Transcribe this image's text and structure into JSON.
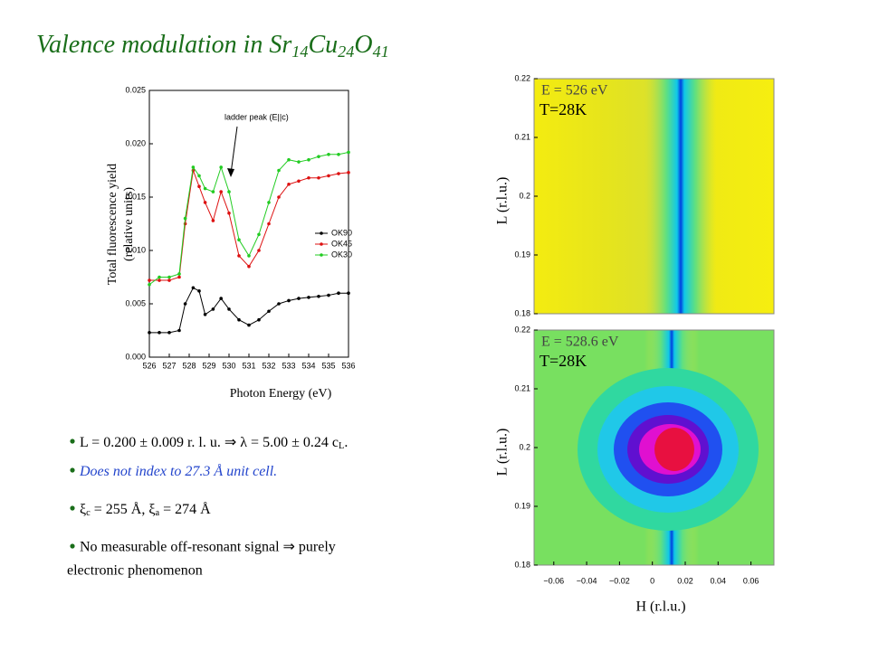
{
  "title_parts": [
    "Valence modulation in Sr",
    "14",
    "Cu",
    "24",
    "O",
    "41"
  ],
  "chart_data": [
    {
      "type": "line",
      "ylabel": [
        "Total fluorescence yield",
        "(relative units)"
      ],
      "xlabel": "Photon Energy (eV)",
      "annotation": "ladder peak (E||c)",
      "x": [
        526,
        526.5,
        527,
        527.5,
        527.8,
        528.2,
        528.5,
        528.8,
        529.2,
        529.6,
        530,
        530.5,
        531,
        531.5,
        532,
        532.5,
        533,
        533.5,
        534,
        534.5,
        535,
        535.5,
        536
      ],
      "series": [
        {
          "name": "OK90",
          "color": "#000000",
          "values": [
            0.0023,
            0.0023,
            0.0023,
            0.0025,
            0.005,
            0.0065,
            0.0062,
            0.004,
            0.0045,
            0.0055,
            0.0045,
            0.0035,
            0.003,
            0.0035,
            0.0043,
            0.005,
            0.0053,
            0.0055,
            0.0056,
            0.0057,
            0.0058,
            0.006,
            0.006
          ]
        },
        {
          "name": "OK45",
          "color": "#dd1111",
          "values": [
            0.0072,
            0.0072,
            0.0072,
            0.0075,
            0.0125,
            0.0175,
            0.016,
            0.0145,
            0.0128,
            0.0155,
            0.0135,
            0.0095,
            0.0085,
            0.01,
            0.0125,
            0.015,
            0.0162,
            0.0165,
            0.0168,
            0.0168,
            0.017,
            0.0172,
            0.0173
          ]
        },
        {
          "name": "OK30",
          "color": "#22cc22",
          "values": [
            0.0068,
            0.0075,
            0.0075,
            0.0078,
            0.013,
            0.0178,
            0.017,
            0.0158,
            0.0155,
            0.0178,
            0.0155,
            0.011,
            0.0095,
            0.0115,
            0.0145,
            0.0175,
            0.0185,
            0.0183,
            0.0185,
            0.0188,
            0.019,
            0.019,
            0.0192
          ]
        }
      ],
      "xlim": [
        526,
        536
      ],
      "xticks": [
        526,
        527,
        528,
        529,
        530,
        531,
        532,
        533,
        534,
        535,
        536
      ],
      "ylim": [
        0,
        0.025
      ],
      "yticks": [
        {
          "value": 0,
          "label": "0.000"
        },
        {
          "value": 0.005,
          "label": "0.005"
        },
        {
          "value": 0.01,
          "label": "0.010"
        },
        {
          "value": 0.015,
          "label": "0.015"
        },
        {
          "value": 0.02,
          "label": "0.020"
        },
        {
          "value": 0.025,
          "label": "0.025"
        }
      ]
    },
    {
      "type": "contour",
      "ylabel": "L (r.l.u.)",
      "annotations": [
        "E = 526 eV",
        "T=28K"
      ],
      "ylim": [
        0.18,
        0.22
      ],
      "yticks": [
        {
          "value": 0.18,
          "label": "0.18"
        },
        {
          "value": 0.19,
          "label": "0.19"
        },
        {
          "value": 0.2,
          "label": "0.2"
        },
        {
          "value": 0.21,
          "label": "0.21"
        },
        {
          "value": 0.22,
          "label": "0.22"
        }
      ]
    },
    {
      "type": "contour",
      "ylabel": "L (r.l.u.)",
      "xlabel": "H (r.l.u.)",
      "annotations": [
        "E = 528.6 eV",
        "T=28K"
      ],
      "ylim": [
        0.18,
        0.22
      ],
      "yticks": [
        {
          "value": 0.18,
          "label": "0.18"
        },
        {
          "value": 0.19,
          "label": "0.19"
        },
        {
          "value": 0.2,
          "label": "0.2"
        },
        {
          "value": 0.21,
          "label": "0.21"
        },
        {
          "value": 0.22,
          "label": "0.22"
        }
      ],
      "xlim": [
        -0.072,
        0.074
      ],
      "xticks": [
        {
          "value": -0.06,
          "label": "−0.06"
        },
        {
          "value": -0.04,
          "label": "−0.04"
        },
        {
          "value": -0.02,
          "label": "−0.02"
        },
        0,
        {
          "value": 0.02,
          "label": "0.02"
        },
        {
          "value": 0.04,
          "label": "0.04"
        },
        {
          "value": 0.06,
          "label": "0.06"
        }
      ]
    }
  ],
  "bullets": [
    [
      "L = 0.200 ± 0.009 r. l. u.  ⇒  λ = 5.00 ± 0.24 c",
      "L",
      "."
    ],
    [
      "Does not index to 27.3 Å unit cell."
    ],
    [
      "ξ",
      "c",
      " = 255 Å, ξ",
      "a",
      " = 274 Å"
    ],
    [
      "No measurable off-resonant signal  ⇒  purely",
      "electronic phenomenon"
    ]
  ]
}
